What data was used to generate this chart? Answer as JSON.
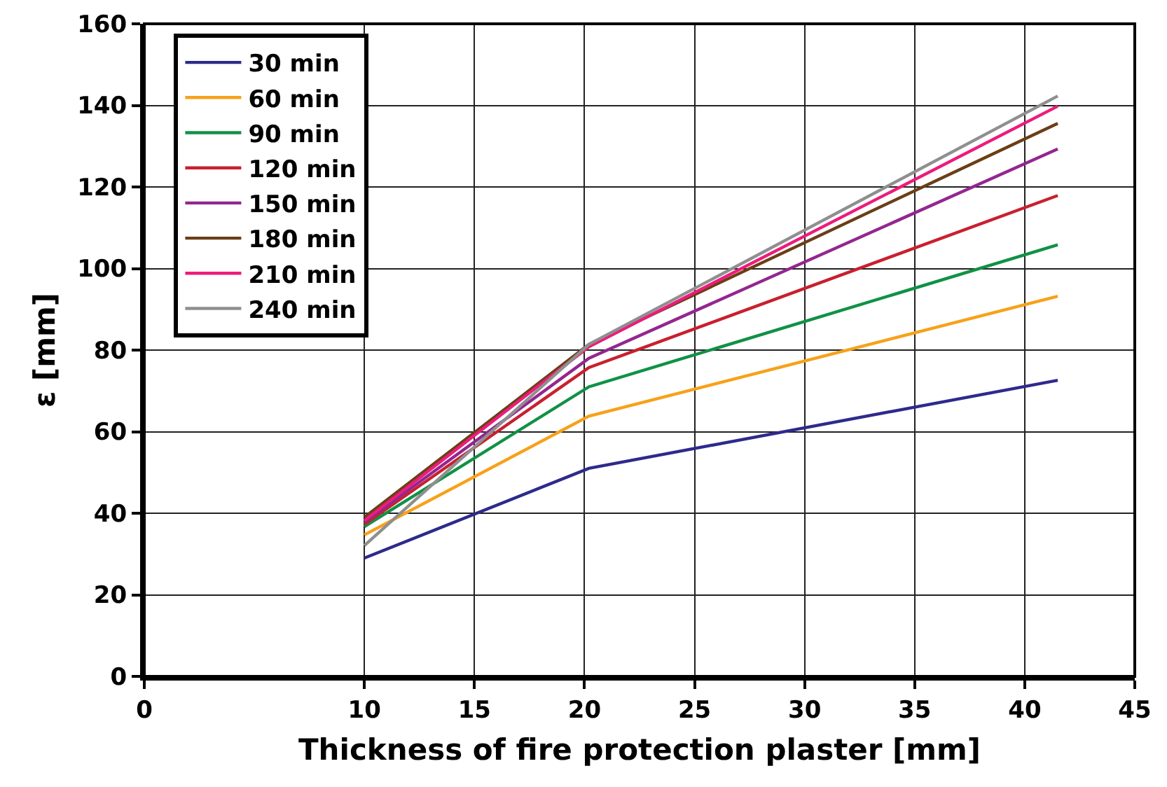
{
  "chart_data": {
    "type": "line",
    "xlabel": "Thickness of fire protection plaster [mm]",
    "ylabel": "ε [mm]",
    "x": [
      10,
      20.2,
      41.5
    ],
    "series": [
      {
        "name": "30 min",
        "color": "#2e2a8c",
        "values": [
          29,
          51,
          72.6
        ]
      },
      {
        "name": "60 min",
        "color": "#f7a11a",
        "values": [
          34.7,
          63.8,
          93.2
        ]
      },
      {
        "name": "90 min",
        "color": "#119146",
        "values": [
          36.7,
          71,
          105.8
        ]
      },
      {
        "name": "120 min",
        "color": "#c8202f",
        "values": [
          37.3,
          75.7,
          117.9
        ]
      },
      {
        "name": "150 min",
        "color": "#93278f",
        "values": [
          37.8,
          78,
          129.3
        ]
      },
      {
        "name": "180 min",
        "color": "#6b3e16",
        "values": [
          39,
          81.4,
          135.6
        ]
      },
      {
        "name": "210 min",
        "color": "#ec1c7b",
        "values": [
          38.2,
          80.8,
          139.8
        ]
      },
      {
        "name": "240 min",
        "color": "#8f8f8f",
        "values": [
          32.1,
          81.4,
          142.3
        ]
      }
    ],
    "xlim": [
      0,
      45
    ],
    "xticks": [
      0,
      10,
      15,
      20,
      25,
      30,
      35,
      40,
      45
    ],
    "ylim": [
      0,
      160
    ],
    "yticks": [
      0,
      20,
      40,
      60,
      80,
      100,
      120,
      140,
      160
    ],
    "grid": true,
    "legend": "top left",
    "marker": "none",
    "line_style": "solid"
  }
}
